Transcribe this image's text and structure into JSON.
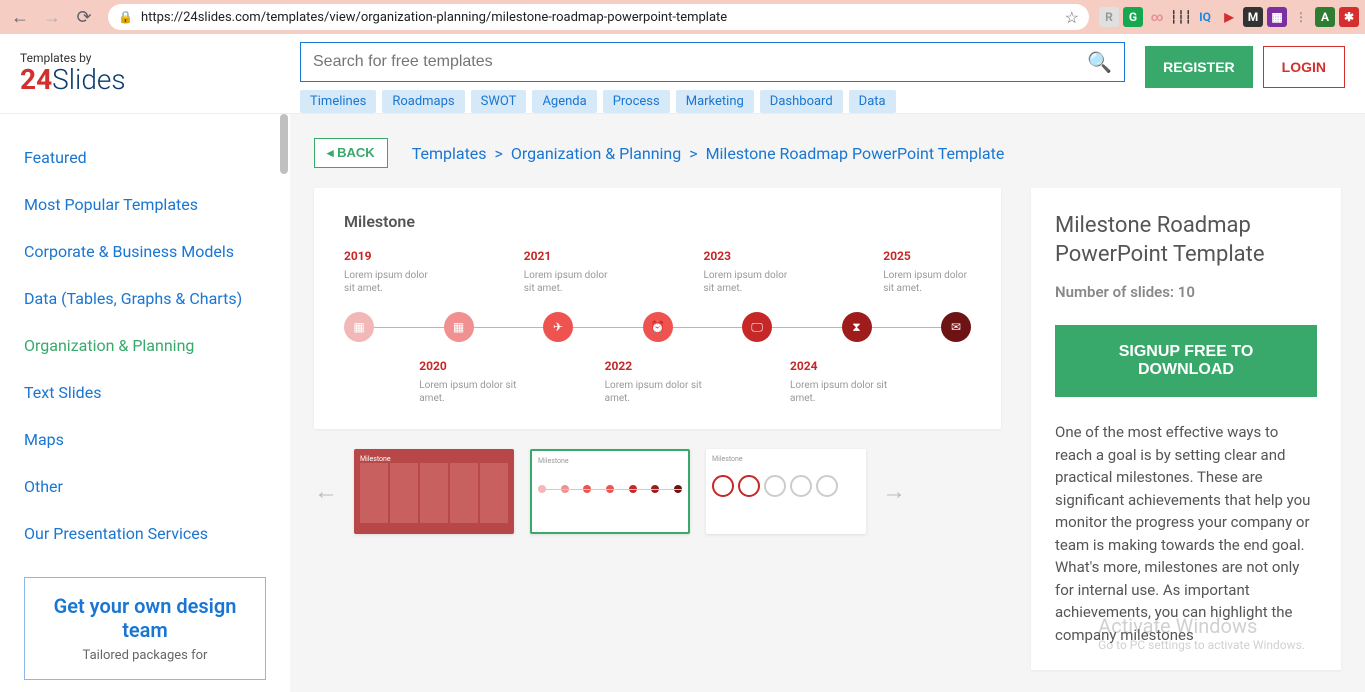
{
  "browser": {
    "url": "https://24slides.com/templates/view/organization-planning/milestone-roadmap-powerpoint-template",
    "ext_icons": [
      {
        "bg": "#e0e0e0",
        "fg": "#999",
        "txt": "R"
      },
      {
        "bg": "#18a74e",
        "fg": "#fff",
        "txt": "G"
      },
      {
        "bg": "transparent",
        "fg": "#e89090",
        "txt": "∞"
      },
      {
        "bg": "transparent",
        "fg": "#333",
        "txt": "┆┆┆"
      },
      {
        "bg": "transparent",
        "fg": "#1e88e5",
        "txt": "IQ"
      },
      {
        "bg": "transparent",
        "fg": "#d32f2f",
        "txt": "▶"
      },
      {
        "bg": "#333",
        "fg": "#fff",
        "txt": "M"
      },
      {
        "bg": "#7b2fa0",
        "fg": "#fff",
        "txt": "▦"
      },
      {
        "bg": "transparent",
        "fg": "#999",
        "txt": "⋮"
      },
      {
        "bg": "#2e7d32",
        "fg": "#fff",
        "txt": "A"
      },
      {
        "bg": "#d32f2f",
        "fg": "#fff",
        "txt": "✱"
      }
    ]
  },
  "header": {
    "logo_sub": "Templates by",
    "logo_24": "24",
    "logo_rest": "Slides",
    "search_placeholder": "Search for free templates",
    "tags": [
      "Timelines",
      "Roadmaps",
      "SWOT",
      "Agenda",
      "Process",
      "Marketing",
      "Dashboard",
      "Data"
    ],
    "register": "REGISTER",
    "login": "LOGIN"
  },
  "sidebar": {
    "items": [
      "Featured",
      "Most Popular Templates",
      "Corporate & Business Models",
      "Data (Tables, Graphs & Charts)",
      "Organization & Planning",
      "Text Slides",
      "Maps",
      "Other",
      "Our Presentation Services"
    ],
    "active_index": 4,
    "cta_title": "Get your own design team",
    "cta_sub": "Tailored packages for"
  },
  "main": {
    "back": "BACK",
    "breadcrumb": [
      "Templates",
      "Organization & Planning",
      "Milestone Roadmap PowerPoint Template"
    ],
    "preview": {
      "title": "Milestone",
      "years_top": [
        "2019",
        "2021",
        "2023",
        "2025"
      ],
      "years_bottom": [
        "2020",
        "2022",
        "2024"
      ],
      "lorem": "Lorem ipsum dolor sit amet.",
      "dot_colors": [
        "#f2b8b8",
        "#f09090",
        "#ef5350",
        "#ef5350",
        "#c62828",
        "#9e1c1c",
        "#6d1313"
      ],
      "dot_icons": [
        "▦",
        "▦",
        "✈",
        "⏰",
        "🖵",
        "⧗",
        "✉"
      ]
    },
    "thumbs": {
      "active_index": 1,
      "items": [
        "Milestone",
        "Milestone",
        "Milestone"
      ]
    },
    "info": {
      "title": "Milestone Roadmap PowerPoint Template",
      "meta": "Number of slides: 10",
      "signup": "SIGNUP FREE TO DOWNLOAD",
      "desc": "One of the most effective ways to reach a goal is by setting clear and practical milestones. These are significant achievements that help you monitor the progress your company or team is making towards the end goal. What's more, milestones are not only for internal use. As important achievements, you can highlight the company milestones"
    },
    "watermark": "Activate Windows",
    "watermark_sub": "Go to PC settings to activate Windows."
  }
}
